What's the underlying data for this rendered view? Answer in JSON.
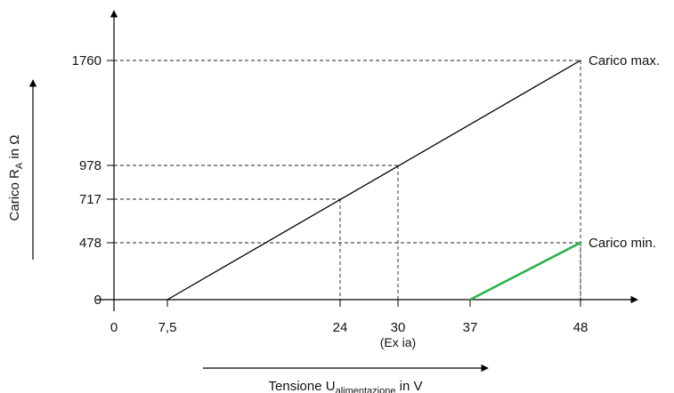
{
  "chart_data": {
    "type": "line",
    "xlabel": {
      "main": "Tensione U",
      "sub": "alimentazione",
      "suffix": " in V"
    },
    "ylabel": {
      "main": "Carico R",
      "sub": "A",
      "suffix": " in Ω"
    },
    "x_ticks": [
      {
        "value": 0,
        "label": "0"
      },
      {
        "value": 7.5,
        "label": "7,5"
      },
      {
        "value": 24,
        "label": "24"
      },
      {
        "value": 30,
        "label": "30"
      },
      {
        "value": 37,
        "label": "37"
      },
      {
        "value": 48,
        "label": "48"
      }
    ],
    "x_tick_note": {
      "value": 30,
      "text": "(Ex ia)"
    },
    "y_ticks": [
      {
        "value": 0,
        "label": "0"
      },
      {
        "value": 478,
        "label": "478"
      },
      {
        "value": 717,
        "label": "717"
      },
      {
        "value": 978,
        "label": "978"
      },
      {
        "value": 1760,
        "label": "1760"
      }
    ],
    "series": [
      {
        "name": "Carico max.",
        "color": "#000000",
        "points": [
          [
            7.5,
            0
          ],
          [
            48,
            1760
          ]
        ]
      },
      {
        "name": "Carico min.",
        "color": "#2db34a",
        "points": [
          [
            37,
            0
          ],
          [
            48,
            478
          ]
        ]
      }
    ],
    "reference_lines": [
      {
        "x": 24,
        "y": 717
      },
      {
        "x": 30,
        "y": 978
      },
      {
        "x": 48,
        "y": 1760
      },
      {
        "x": 48,
        "y": 478
      }
    ],
    "grid": false
  }
}
